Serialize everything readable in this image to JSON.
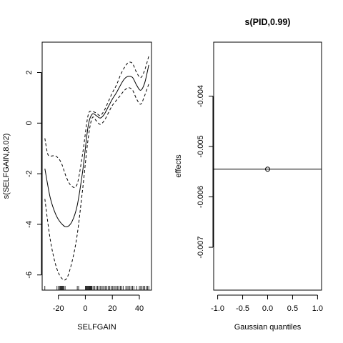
{
  "chart_data": [
    {
      "type": "line",
      "title": "",
      "xlabel": "SELFGAIN",
      "ylabel": "s(SELFGAIN,8.02)",
      "xlim": [
        -32,
        49
      ],
      "ylim": [
        -6.6,
        3.2
      ],
      "xticks": [
        -20,
        0,
        20,
        40
      ],
      "xtick_labels": [
        "-20",
        "0",
        "20",
        "40"
      ],
      "yticks": [
        -6,
        -4,
        -2,
        0,
        2
      ],
      "ytick_labels": [
        "-6",
        "-4",
        "-2",
        "0",
        "2"
      ],
      "grid": false,
      "legend": "none",
      "series": [
        {
          "role": "fit",
          "style": "solid",
          "x": [
            -30,
            -26,
            -22,
            -18,
            -14,
            -10,
            -6,
            -2,
            2,
            5,
            8,
            11,
            14,
            17,
            20,
            23,
            26,
            29,
            32,
            35,
            38,
            41,
            44,
            47
          ],
          "y": [
            -1.8,
            -2.95,
            -3.6,
            -3.95,
            -4.1,
            -3.9,
            -3.25,
            -1.9,
            -0.15,
            0.35,
            0.3,
            0.2,
            0.35,
            0.65,
            0.95,
            1.2,
            1.5,
            1.75,
            1.85,
            1.8,
            1.5,
            1.3,
            1.6,
            2.3
          ]
        },
        {
          "role": "upper",
          "style": "dashed",
          "x": [
            -30,
            -28,
            -26,
            -22,
            -18,
            -14,
            -10,
            -6,
            -2,
            2,
            5,
            8,
            11,
            14,
            17,
            20,
            23,
            26,
            29,
            32,
            35,
            38,
            41,
            44,
            47
          ],
          "y": [
            -0.6,
            -1.2,
            -1.3,
            -1.3,
            -1.55,
            -2.15,
            -2.5,
            -2.4,
            -1.2,
            0.3,
            0.45,
            0.4,
            0.3,
            0.5,
            0.85,
            1.2,
            1.5,
            1.9,
            2.2,
            2.4,
            2.35,
            2.0,
            1.8,
            2.1,
            2.65
          ]
        },
        {
          "role": "lower",
          "style": "dashed",
          "x": [
            -30,
            -26,
            -22,
            -18,
            -14,
            -10,
            -6,
            -2,
            2,
            5,
            8,
            11,
            14,
            17,
            20,
            23,
            26,
            29,
            32,
            35,
            38,
            41,
            44,
            47
          ],
          "y": [
            -3.0,
            -4.6,
            -5.6,
            -6.1,
            -6.15,
            -5.5,
            -4.4,
            -2.6,
            -0.65,
            0.2,
            0.1,
            -0.05,
            0.1,
            0.4,
            0.7,
            0.9,
            1.1,
            1.3,
            1.4,
            1.3,
            0.95,
            0.75,
            1.1,
            1.55
          ]
        }
      ],
      "rug": [
        -30,
        -21,
        -20,
        -19,
        -18.5,
        -18,
        -17.5,
        -17,
        -16.5,
        -16,
        -15,
        -6,
        -5,
        0,
        0.5,
        1,
        1.5,
        2,
        2.5,
        3,
        3.5,
        4,
        4.5,
        5,
        6,
        7,
        8,
        9,
        10,
        11,
        12,
        13,
        14,
        15,
        16,
        17,
        18,
        19,
        20,
        21,
        22,
        23,
        24,
        25,
        26,
        27,
        28,
        30,
        31,
        32,
        33,
        34,
        35,
        36,
        38,
        40,
        41,
        42,
        43,
        44,
        45,
        46,
        47
      ]
    },
    {
      "type": "scatter",
      "title": "s(PID,0.99)",
      "xlabel": "Gaussian quantiles",
      "ylabel": "effects",
      "xlim": [
        -1.08,
        1.08
      ],
      "ylim": [
        -0.00785,
        -0.00293
      ],
      "xticks": [
        -1.0,
        -0.5,
        0.0,
        0.5,
        1.0
      ],
      "xtick_labels": [
        "-1.0",
        "-0.5",
        "0.0",
        "0.5",
        "1.0"
      ],
      "yticks": [
        -0.004,
        -0.005,
        -0.006,
        -0.007
      ],
      "ytick_labels": [
        "-0.004",
        "-0.005",
        "-0.006",
        "-0.007"
      ],
      "grid": false,
      "legend": "none",
      "points": [
        {
          "x": 0.0,
          "y": -0.00545
        }
      ],
      "reference_line": {
        "y": -0.00545
      }
    }
  ]
}
